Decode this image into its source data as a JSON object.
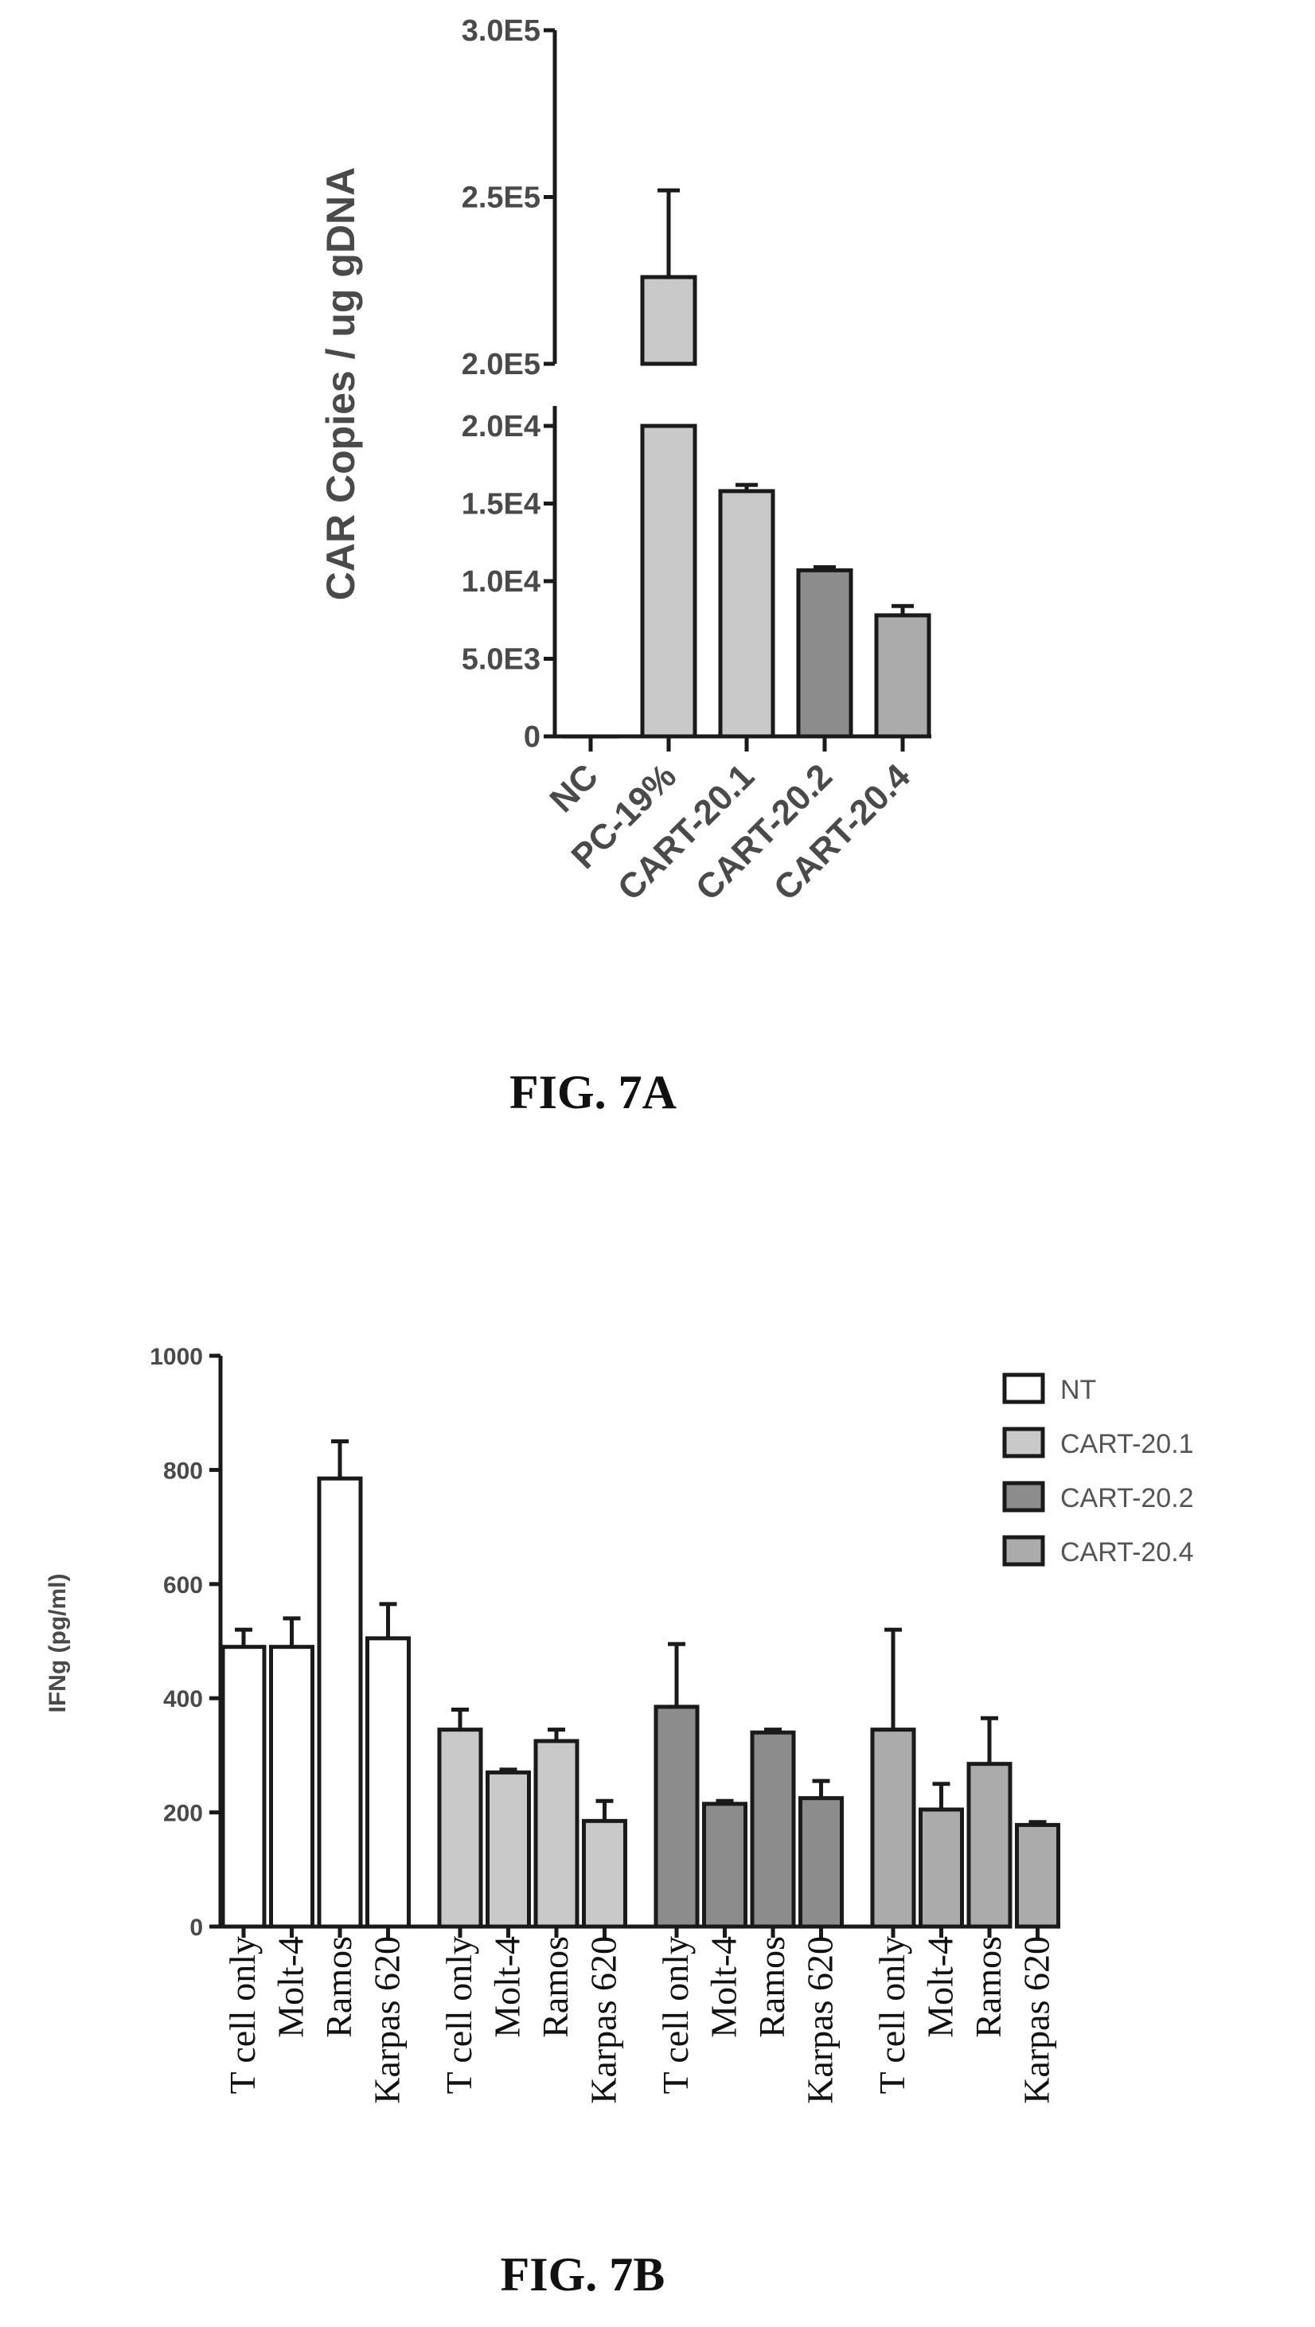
{
  "colors": {
    "NT": "#ffffff",
    "CART-20.1": "#c9c9c9",
    "CART-20.2": "#8c8c8c",
    "CART-20.4": "#ababab",
    "PC-19%": "#c9c9c9"
  },
  "chart_data": [
    {
      "type": "bar",
      "caption": "FIG. 7A",
      "ylabel": "CAR Copies / ug gDNA",
      "categories": [
        "NC",
        "PC-19%",
        "CART-20.1",
        "CART-20.2",
        "CART-20.4"
      ],
      "values": [
        0,
        226000,
        15800,
        10700,
        7800
      ],
      "errors": [
        0,
        26000,
        400,
        200,
        600
      ],
      "axis_break": {
        "lower_range": [
          0,
          20000
        ],
        "upper_range": [
          200000,
          300000
        ]
      },
      "yticks_lower": [
        "0",
        "5.0E3",
        "1.0E4",
        "1.5E4",
        "2.0E4"
      ],
      "yticks_upper": [
        "2.0E5",
        "2.5E5",
        "3.0E5"
      ],
      "grid": false
    },
    {
      "type": "bar",
      "caption": "FIG. 7B",
      "ylabel": "IFNg (pg/ml)",
      "ylim": [
        0,
        1000
      ],
      "yticks": [
        "0",
        "200",
        "400",
        "600",
        "800",
        "1000"
      ],
      "categories": [
        "T cell only",
        "Molt-4",
        "Ramos",
        "Karpas 620"
      ],
      "series": [
        {
          "name": "NT",
          "values": [
            490,
            490,
            785,
            505
          ],
          "errors": [
            30,
            50,
            65,
            60
          ]
        },
        {
          "name": "CART-20.1",
          "values": [
            345,
            270,
            325,
            185
          ],
          "errors": [
            35,
            5,
            20,
            35
          ]
        },
        {
          "name": "CART-20.2",
          "values": [
            385,
            215,
            340,
            225
          ],
          "errors": [
            110,
            5,
            5,
            30
          ]
        },
        {
          "name": "CART-20.4",
          "values": [
            345,
            205,
            285,
            178
          ],
          "errors": [
            175,
            45,
            80,
            5
          ]
        }
      ],
      "legend_position": "top-right",
      "grid": false
    }
  ]
}
